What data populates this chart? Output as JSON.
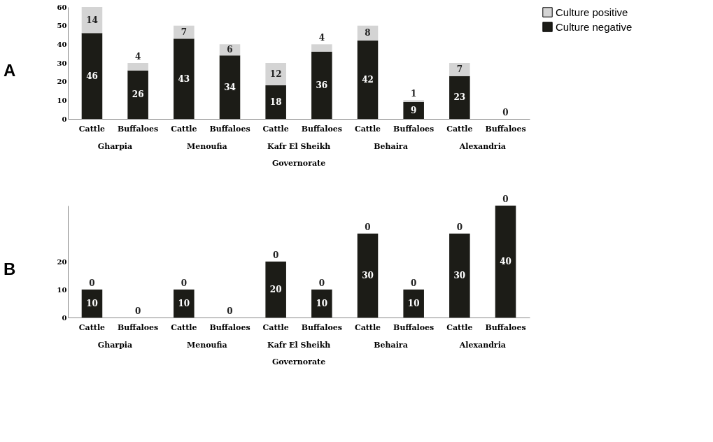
{
  "chart_data": [
    {
      "type": "bar",
      "title": "A",
      "xlabel": "Governorate",
      "stacked": true,
      "legend": "top right",
      "grid": false,
      "categories": [
        "Cattle",
        "Buffaloes",
        "Cattle",
        "Buffaloes",
        "Cattle",
        "Buffaloes",
        "Cattle",
        "Buffaloes",
        "Cattle",
        "Buffaloes"
      ],
      "annotations": [
        "Gharpia",
        "Menoufia",
        "Kafr El Sheikh",
        "Behaira",
        "Alexandria"
      ],
      "ylim": [
        0,
        60
      ],
      "yticks": [
        0,
        10,
        20,
        30,
        40,
        50,
        60
      ],
      "series": [
        {
          "name": "Culture negative",
          "color": "#1c1c17",
          "values": [
            46,
            26,
            43,
            34,
            18,
            36,
            42,
            9,
            23,
            0
          ],
          "value_labels": [
            "46",
            "26",
            "43",
            "34",
            "18",
            "36",
            "42",
            "9",
            "23",
            null
          ]
        },
        {
          "name": "Culture positive",
          "color": "#d4d4d4",
          "values": [
            14,
            4,
            7,
            6,
            12,
            4,
            8,
            1,
            7,
            0
          ],
          "value_labels": [
            "14",
            "4",
            "7",
            "6",
            "12",
            "4",
            "8",
            "1",
            "7",
            "0"
          ]
        }
      ]
    },
    {
      "type": "bar",
      "title": "B",
      "xlabel": "Governorate",
      "stacked": true,
      "grid": false,
      "categories": [
        "Cattle",
        "Buffaloes",
        "Cattle",
        "Buffaloes",
        "Cattle",
        "Buffaloes",
        "Cattle",
        "Buffaloes",
        "Cattle",
        "Buffaloes"
      ],
      "annotations": [
        "Gharpia",
        "Menoufia",
        "Kafr El Sheikh",
        "Behaira",
        "Alexandria"
      ],
      "ylim": [
        0,
        40
      ],
      "yticks": [
        0,
        10,
        20
      ],
      "series": [
        {
          "color": "#1c1c17",
          "values": [
            10,
            0,
            10,
            0,
            20,
            10,
            30,
            10,
            30,
            40
          ],
          "value_labels": [
            "10",
            null,
            "10",
            null,
            "20",
            "10",
            "30",
            "10",
            "30",
            "40"
          ]
        },
        {
          "color": "#d4d4d4",
          "values": [
            0,
            0,
            0,
            0,
            0,
            0,
            0,
            0,
            0,
            0
          ],
          "value_labels": [
            "0",
            "0",
            "0",
            "0",
            "0",
            "0",
            "0",
            "0",
            "0",
            "0"
          ]
        }
      ]
    }
  ]
}
